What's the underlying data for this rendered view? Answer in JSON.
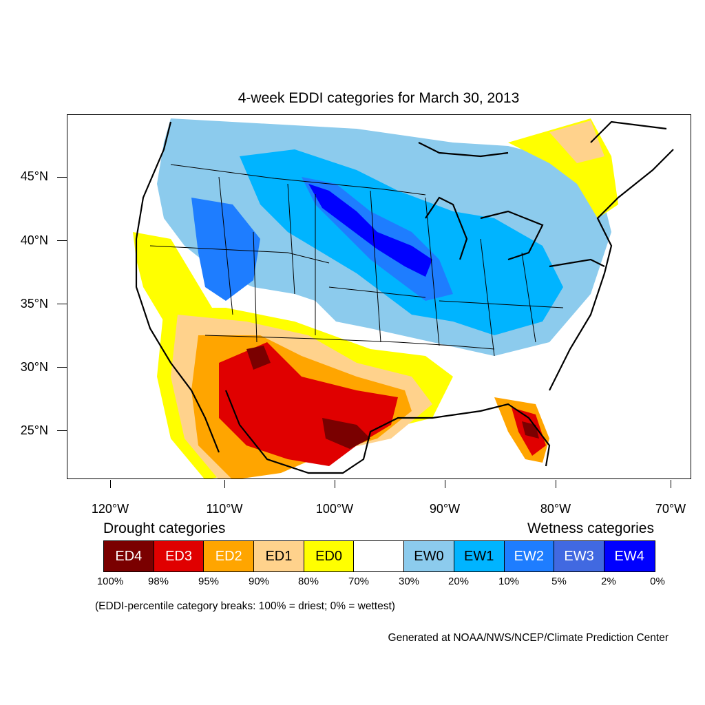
{
  "title": "4-week EDDI categories for March 30, 2013",
  "lat_labels": [
    "45°N",
    "40°N",
    "35°N",
    "30°N",
    "25°N"
  ],
  "lon_labels": [
    "120°W",
    "110°W",
    "100°W",
    "90°W",
    "80°W",
    "70°W"
  ],
  "drought_heading": "Drought categories",
  "wetness_heading": "Wetness categories",
  "legend": [
    {
      "label": "ED4",
      "color": "#7a0000",
      "text_color": "#ffffff"
    },
    {
      "label": "ED3",
      "color": "#e00000",
      "text_color": "#ffffff"
    },
    {
      "label": "ED2",
      "color": "#ffa500",
      "text_color": "#ffffff"
    },
    {
      "label": "ED1",
      "color": "#ffd28c",
      "text_color": "#000000"
    },
    {
      "label": "ED0",
      "color": "#ffff00",
      "text_color": "#000000"
    },
    {
      "label": "",
      "color": "#ffffff",
      "text_color": "#000000"
    },
    {
      "label": "EW0",
      "color": "#8ccbed",
      "text_color": "#000000"
    },
    {
      "label": "EW1",
      "color": "#00b4ff",
      "text_color": "#000000"
    },
    {
      "label": "EW2",
      "color": "#1e7dff",
      "text_color": "#ffffff"
    },
    {
      "label": "EW3",
      "color": "#4169e1",
      "text_color": "#ffffff"
    },
    {
      "label": "EW4",
      "color": "#0000ff",
      "text_color": "#ffffff"
    }
  ],
  "percent_breaks": [
    "100%",
    "98%",
    "95%",
    "90%",
    "80%",
    "70%",
    "30%",
    "20%",
    "10%",
    "5%",
    "2%",
    "0%"
  ],
  "note": "(EDDI-percentile category breaks: 100% = driest; 0% = wettest)",
  "credit": "Generated at NOAA/NWS/NCEP/Climate Prediction Center"
}
